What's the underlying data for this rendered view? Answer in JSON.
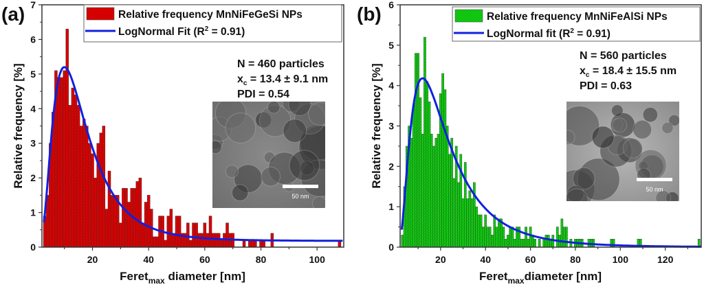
{
  "chart_data": [
    {
      "type": "bar",
      "panel_label": "(a)",
      "title": "",
      "xlabel": "Feret",
      "xlabel_sub": "max",
      "xlabel_rest": " diameter [nm]",
      "ylabel": "Relative frequency [%]",
      "xlim": [
        2,
        109.5
      ],
      "ylim": [
        0,
        7
      ],
      "xticks": [
        20,
        40,
        60,
        80,
        100
      ],
      "yticks": [
        0,
        1,
        2,
        3,
        4,
        5,
        6,
        7
      ],
      "bar_color": "#e00000",
      "fit_color": "#1020e0",
      "legend": {
        "position": "top-right",
        "bar_label": "Relative frequency MnNiFeGeSi NPs",
        "fit_label_pre": "LogNormal Fit (R",
        "fit_label_sup": "2",
        "fit_label_post": " = 0.91)"
      },
      "annotations": {
        "n": "N = 460 particles",
        "xc_pre": "x",
        "xc_sub": "c",
        "xc_post": " = 13.4 ± 9.1 nm",
        "pdi": "PDI = 0.54"
      },
      "inset": {
        "scale_label": "50 nm",
        "tone": "tem-image"
      },
      "bin_width": 1,
      "x": [
        3,
        4,
        5,
        6,
        7,
        8,
        9,
        10,
        11,
        12,
        13,
        14,
        15,
        16,
        17,
        18,
        19,
        20,
        21,
        22,
        23,
        24,
        25,
        26,
        27,
        28,
        29,
        30,
        31,
        32,
        33,
        34,
        35,
        36,
        37,
        38,
        39,
        40,
        41,
        42,
        43,
        44,
        45,
        46,
        47,
        48,
        49,
        50,
        51,
        52,
        53,
        54,
        55,
        56,
        57,
        58,
        59,
        60,
        61,
        62,
        63,
        64,
        65,
        66,
        67,
        68,
        69,
        70,
        74,
        76,
        77,
        78,
        80,
        81,
        84,
        108
      ],
      "values": [
        0.9,
        1.5,
        3.0,
        3.9,
        5.1,
        4.9,
        4.9,
        5.1,
        6.3,
        4.1,
        4.6,
        4.4,
        4.1,
        3.5,
        3.7,
        3.5,
        3.0,
        2.7,
        2.0,
        3.0,
        3.3,
        3.5,
        1.1,
        2.2,
        1.5,
        1.5,
        1.5,
        0.7,
        1.7,
        1.7,
        1.3,
        1.7,
        1.7,
        1.9,
        2.0,
        0.7,
        1.3,
        1.5,
        1.1,
        0.3,
        0.3,
        0.9,
        0.9,
        0.2,
        0.9,
        1.1,
        0.4,
        0.9,
        0.9,
        0.4,
        0.4,
        0.7,
        0.2,
        0.7,
        0.7,
        0.4,
        0.4,
        0.7,
        0.4,
        0.9,
        0.4,
        0.4,
        0.4,
        0.2,
        0.4,
        0.7,
        0.4,
        0.4,
        0.2,
        0.2,
        0.2,
        0.2,
        0.2,
        0.2,
        0.4,
        0.2
      ],
      "fit": {
        "type": "lognormal",
        "xc": 13.4,
        "w": 0.62,
        "peak": 5.2,
        "offset": 0.18,
        "peak_x": 10
      }
    },
    {
      "type": "bar",
      "panel_label": "(b)",
      "title": "",
      "xlabel": "Feret",
      "xlabel_sub": "max",
      "xlabel_rest": "diameter [nm]",
      "ylabel": "Relative frequency [%]",
      "xlim": [
        2,
        136
      ],
      "ylim": [
        0,
        6
      ],
      "xticks": [
        20,
        40,
        60,
        80,
        100,
        120
      ],
      "yticks": [
        0,
        1,
        2,
        3,
        4,
        5,
        6
      ],
      "bar_color": "#10d010",
      "fit_color": "#1020e0",
      "legend": {
        "position": "top-right",
        "bar_label": "Relative frequency MnNiFeAlSi NPs",
        "fit_label_pre": "LogNormal fit (R",
        "fit_label_sup": "2",
        "fit_label_post": " = 0.91)"
      },
      "annotations": {
        "n": "N = 560 particles",
        "xc_pre": "x",
        "xc_sub": "c",
        "xc_post": " = 18.4 ± 15.5 nm",
        "pdi": "PDI = 0.63"
      },
      "inset": {
        "scale_label": "50 nm",
        "tone": "tem-image"
      },
      "bin_width": 1,
      "x": [
        3,
        4,
        5,
        6,
        7,
        8,
        9,
        10,
        11,
        12,
        13,
        14,
        15,
        16,
        17,
        18,
        19,
        20,
        21,
        22,
        23,
        24,
        25,
        26,
        27,
        28,
        29,
        30,
        31,
        32,
        33,
        34,
        35,
        36,
        37,
        38,
        39,
        40,
        41,
        42,
        43,
        44,
        45,
        46,
        47,
        48,
        49,
        50,
        51,
        52,
        53,
        54,
        55,
        56,
        57,
        58,
        59,
        60,
        61,
        62,
        64,
        66,
        67,
        68,
        69,
        70,
        72,
        73,
        74,
        75,
        76,
        78,
        80,
        81,
        82,
        83,
        86,
        87,
        88,
        96,
        97,
        108,
        109,
        135
      ],
      "values": [
        0.3,
        1.5,
        2.5,
        3.0,
        2.7,
        3.5,
        4.8,
        4.8,
        3.7,
        2.8,
        5.2,
        4.1,
        3.6,
        2.8,
        2.5,
        2.7,
        2.8,
        3.8,
        4.3,
        3.9,
        3.0,
        2.3,
        2.7,
        1.7,
        2.5,
        1.6,
        2.3,
        1.2,
        2.1,
        1.2,
        1.4,
        1.2,
        1.6,
        1.0,
        0.8,
        0.8,
        0.5,
        0.8,
        0.5,
        0.5,
        0.3,
        0.8,
        0.5,
        0.7,
        0.7,
        0.5,
        0.2,
        0.3,
        0.5,
        0.5,
        0.2,
        0.5,
        0.5,
        0.2,
        0.2,
        0.5,
        0.2,
        0.5,
        0.3,
        0.2,
        0.2,
        0.2,
        0.3,
        0.3,
        0.2,
        0.3,
        0.5,
        0.3,
        0.7,
        0.5,
        0.5,
        0.2,
        0.2,
        0.2,
        0.2,
        0.2,
        0.2,
        0.2,
        0.2,
        0.2,
        0.2,
        0.2,
        0.2,
        0.2
      ],
      "fit": {
        "type": "lognormal",
        "xc": 18.4,
        "w": 0.7,
        "peak": 4.18,
        "offset": 0.0,
        "peak_x": 12
      }
    }
  ]
}
